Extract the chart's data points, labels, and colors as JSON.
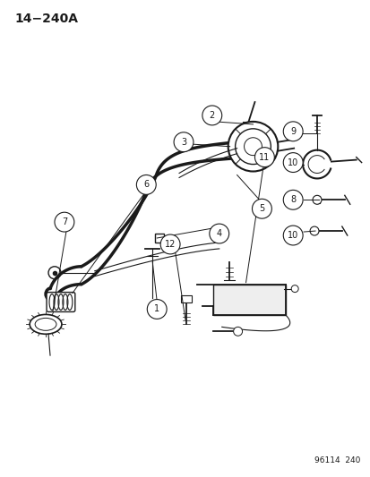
{
  "title": "14−240A",
  "footer": "96114  240",
  "background_color": "#ffffff",
  "line_color": "#1a1a1a",
  "fig_width": 4.14,
  "fig_height": 5.33,
  "dpi": 100
}
